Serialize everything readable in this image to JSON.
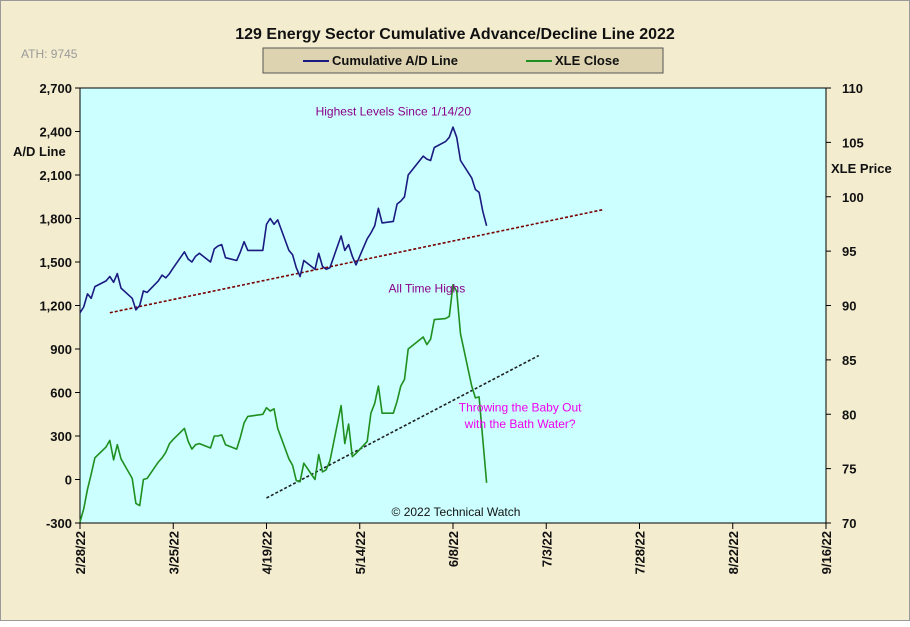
{
  "chart_data": {
    "type": "line",
    "title": "129 Energy Sector Cumulative Advance/Decline Line 2022",
    "note_ath": "ATH: 9745",
    "ylabel_left": "A/D Line",
    "ylabel_right": "XLE Price",
    "copyright": "© 2022 Technical Watch",
    "colors": {
      "plot_bg": "#ccffff",
      "frame_bg": "#f3eccf",
      "legend_bg": "#ded3b0",
      "ad_line": "#1a1a80",
      "xle_line": "#1f8f1f",
      "ad_trend": "#7a0000",
      "xle_trend": "#202020",
      "annotation_purple": "#8b008b",
      "annotation_magenta": "#ee00ee"
    },
    "legend": [
      {
        "label": "Cumulative A/D Line",
        "color": "#1a1a80"
      },
      {
        "label": "XLE Close",
        "color": "#1f8f1f"
      }
    ],
    "legend_placement": "top-center",
    "x_axis": {
      "start": "2022-02-28",
      "end": "2022-09-16",
      "tick_labels": [
        "2/28/22",
        "3/25/22",
        "4/19/22",
        "5/14/22",
        "6/8/22",
        "7/3/22",
        "7/28/22",
        "8/22/22",
        "9/16/22"
      ],
      "tick_dates": [
        "2022-02-28",
        "2022-03-25",
        "2022-04-19",
        "2022-05-14",
        "2022-06-08",
        "2022-07-03",
        "2022-07-28",
        "2022-08-22",
        "2022-09-16"
      ]
    },
    "y_left": {
      "min": -300,
      "max": 2700,
      "ticks": [
        -300,
        0,
        300,
        600,
        900,
        1200,
        1500,
        1800,
        2100,
        2400,
        2700
      ],
      "tick_labels": [
        "-300",
        "0",
        "300",
        "600",
        "900",
        "1,200",
        "1,500",
        "1,800",
        "2,100",
        "2,400",
        "2,700"
      ]
    },
    "y_right": {
      "min": 70,
      "max": 110,
      "ticks": [
        70,
        75,
        80,
        85,
        90,
        95,
        100,
        105,
        110
      ],
      "tick_labels": [
        "70",
        "75",
        "80",
        "85",
        "90",
        "95",
        "100",
        "105",
        "110"
      ]
    },
    "series": [
      {
        "name": "Cumulative A/D Line",
        "axis": "left",
        "x": [
          "2022-02-28",
          "2022-03-01",
          "2022-03-02",
          "2022-03-03",
          "2022-03-04",
          "2022-03-07",
          "2022-03-08",
          "2022-03-09",
          "2022-03-10",
          "2022-03-11",
          "2022-03-14",
          "2022-03-15",
          "2022-03-16",
          "2022-03-17",
          "2022-03-18",
          "2022-03-21",
          "2022-03-22",
          "2022-03-23",
          "2022-03-24",
          "2022-03-25",
          "2022-03-28",
          "2022-03-29",
          "2022-03-30",
          "2022-03-31",
          "2022-04-01",
          "2022-04-04",
          "2022-04-05",
          "2022-04-06",
          "2022-04-07",
          "2022-04-08",
          "2022-04-11",
          "2022-04-12",
          "2022-04-13",
          "2022-04-14",
          "2022-04-18",
          "2022-04-19",
          "2022-04-20",
          "2022-04-21",
          "2022-04-22",
          "2022-04-25",
          "2022-04-26",
          "2022-04-27",
          "2022-04-28",
          "2022-04-29",
          "2022-05-02",
          "2022-05-03",
          "2022-05-04",
          "2022-05-05",
          "2022-05-06",
          "2022-05-09",
          "2022-05-10",
          "2022-05-11",
          "2022-05-12",
          "2022-05-13",
          "2022-05-16",
          "2022-05-17",
          "2022-05-18",
          "2022-05-19",
          "2022-05-20",
          "2022-05-23",
          "2022-05-24",
          "2022-05-25",
          "2022-05-26",
          "2022-05-27",
          "2022-05-31",
          "2022-06-01",
          "2022-06-02",
          "2022-06-03",
          "2022-06-06",
          "2022-06-07",
          "2022-06-08",
          "2022-06-09",
          "2022-06-10",
          "2022-06-13",
          "2022-06-14",
          "2022-06-15",
          "2022-06-16",
          "2022-06-17"
        ],
        "values": [
          1150,
          1190,
          1280,
          1250,
          1330,
          1370,
          1400,
          1360,
          1420,
          1320,
          1250,
          1170,
          1200,
          1300,
          1290,
          1370,
          1410,
          1390,
          1420,
          1460,
          1570,
          1520,
          1500,
          1540,
          1560,
          1500,
          1590,
          1610,
          1620,
          1530,
          1510,
          1570,
          1640,
          1580,
          1580,
          1760,
          1800,
          1760,
          1790,
          1580,
          1550,
          1460,
          1400,
          1510,
          1450,
          1560,
          1470,
          1450,
          1460,
          1680,
          1580,
          1620,
          1540,
          1480,
          1660,
          1700,
          1750,
          1870,
          1770,
          1780,
          1900,
          1920,
          1950,
          2100,
          2230,
          2210,
          2200,
          2290,
          2330,
          2360,
          2430,
          2360,
          2200,
          2080,
          2000,
          1980,
          1850,
          1750
        ]
      },
      {
        "name": "XLE Close",
        "axis": "right",
        "x": [
          "2022-02-28",
          "2022-03-01",
          "2022-03-02",
          "2022-03-03",
          "2022-03-04",
          "2022-03-07",
          "2022-03-08",
          "2022-03-09",
          "2022-03-10",
          "2022-03-11",
          "2022-03-14",
          "2022-03-15",
          "2022-03-16",
          "2022-03-17",
          "2022-03-18",
          "2022-03-21",
          "2022-03-22",
          "2022-03-23",
          "2022-03-24",
          "2022-03-25",
          "2022-03-28",
          "2022-03-29",
          "2022-03-30",
          "2022-03-31",
          "2022-04-01",
          "2022-04-04",
          "2022-04-05",
          "2022-04-06",
          "2022-04-07",
          "2022-04-08",
          "2022-04-11",
          "2022-04-12",
          "2022-04-13",
          "2022-04-14",
          "2022-04-18",
          "2022-04-19",
          "2022-04-20",
          "2022-04-21",
          "2022-04-22",
          "2022-04-25",
          "2022-04-26",
          "2022-04-27",
          "2022-04-28",
          "2022-04-29",
          "2022-05-02",
          "2022-05-03",
          "2022-05-04",
          "2022-05-05",
          "2022-05-06",
          "2022-05-09",
          "2022-05-10",
          "2022-05-11",
          "2022-05-12",
          "2022-05-13",
          "2022-05-16",
          "2022-05-17",
          "2022-05-18",
          "2022-05-19",
          "2022-05-20",
          "2022-05-23",
          "2022-05-24",
          "2022-05-25",
          "2022-05-26",
          "2022-05-27",
          "2022-05-31",
          "2022-06-01",
          "2022-06-02",
          "2022-06-03",
          "2022-06-06",
          "2022-06-07",
          "2022-06-08",
          "2022-06-09",
          "2022-06-10",
          "2022-06-13",
          "2022-06-14",
          "2022-06-15",
          "2022-06-16",
          "2022-06-17"
        ],
        "values": [
          70.1,
          71.3,
          73.1,
          74.5,
          76.0,
          77.0,
          77.6,
          75.8,
          77.2,
          75.9,
          74.1,
          71.8,
          71.6,
          74.0,
          74.1,
          75.6,
          76.0,
          76.5,
          77.3,
          77.7,
          78.7,
          77.5,
          76.8,
          77.2,
          77.3,
          76.9,
          78.0,
          78.0,
          78.1,
          77.2,
          76.8,
          77.9,
          79.2,
          79.8,
          80.0,
          80.6,
          80.3,
          80.5,
          78.7,
          75.9,
          75.3,
          73.9,
          73.8,
          75.5,
          74.0,
          76.3,
          74.7,
          74.9,
          75.7,
          80.8,
          77.3,
          79.1,
          76.1,
          76.4,
          77.5,
          80.1,
          81.0,
          82.6,
          80.1,
          80.1,
          81.2,
          82.6,
          83.2,
          86.0,
          87.1,
          86.4,
          86.9,
          88.7,
          88.8,
          89.0,
          91.9,
          91.3,
          87.4,
          82.6,
          81.5,
          81.6,
          77.7,
          73.7
        ]
      }
    ],
    "trendlines": [
      {
        "axis": "left",
        "style": "dotted",
        "color": "#7a0000",
        "x": [
          "2022-03-08",
          "2022-07-18"
        ],
        "values": [
          1150,
          1860
        ]
      },
      {
        "axis": "right",
        "style": "dotted",
        "color": "#202020",
        "x": [
          "2022-04-19",
          "2022-07-01"
        ],
        "values": [
          72.3,
          85.4
        ]
      }
    ],
    "annotations": [
      {
        "text": "Highest Levels Since 1/14/20",
        "color": "#8b008b",
        "x": "2022-05-23",
        "axis": "left",
        "y": 2510
      },
      {
        "text": "All Time Highs",
        "color": "#8b008b",
        "x": "2022-06-01",
        "axis": "left",
        "y": 1290
      },
      {
        "text": "Throwing the Baby Out",
        "color": "#ee00ee",
        "x": "2022-06-26",
        "axis": "left",
        "y": 470
      },
      {
        "text": "with the Bath Water?",
        "color": "#ee00ee",
        "x": "2022-06-26",
        "axis": "left",
        "y": 355
      }
    ],
    "grid": false
  }
}
